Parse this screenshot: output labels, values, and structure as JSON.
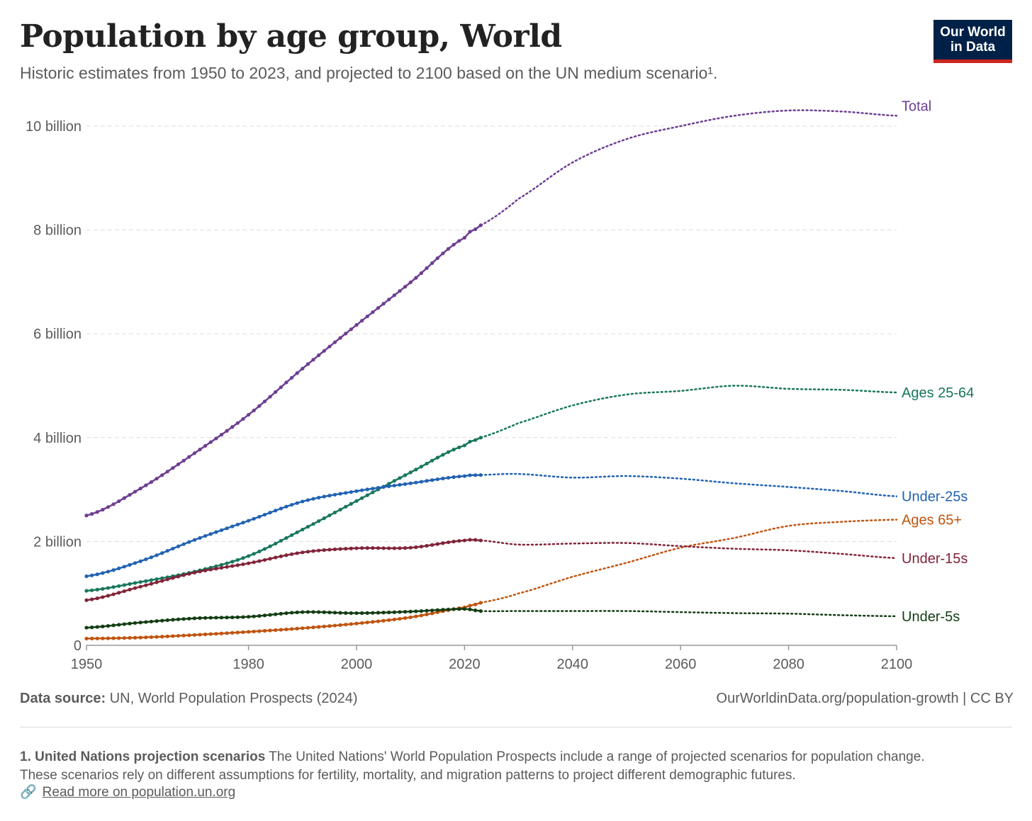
{
  "header": {
    "title": "Population by age group, World",
    "subtitle": "Historic estimates from 1950 to 2023, and projected to 2100 based on the UN medium scenario¹."
  },
  "logo": {
    "line1": "Our World",
    "line2": "in Data",
    "bg_color": "#002147",
    "accent_color": "#ce261e"
  },
  "footer": {
    "source_label": "Data source:",
    "source_text": "UN, World Population Prospects (2024)",
    "credit": "OurWorldinData.org/population-growth | CC BY",
    "footnote_title": "1. United Nations projection scenarios",
    "footnote_text": "The United Nations' World Population Prospects include a range of projected scenarios for population change. These scenarios rely on different assumptions for fertility, mortality, and migration patterns to project different demographic futures.",
    "link_icon": "link-icon",
    "link_text": "Read more on population.un.org"
  },
  "chart_data": {
    "type": "line",
    "title": "Population by age group, World",
    "xlim": [
      1950,
      2100
    ],
    "ylim": [
      0,
      10000000000
    ],
    "x_ticks": [
      1950,
      1980,
      2000,
      2020,
      2040,
      2060,
      2080,
      2100
    ],
    "x_tick_labels": [
      "1950",
      "1980",
      "2000",
      "2020",
      "2040",
      "2060",
      "2080",
      "2100"
    ],
    "y_ticks": [
      0,
      2000000000,
      4000000000,
      6000000000,
      8000000000,
      10000000000
    ],
    "y_tick_labels": [
      "0",
      "2 billion",
      "4 billion",
      "6 billion",
      "8 billion",
      "10 billion"
    ],
    "grid": "horizontal dashed",
    "legend": "labels at line ends (right)",
    "historic_end_year": 2023,
    "historic_style": "solid with dot markers",
    "projection_style": "dotted",
    "series": [
      {
        "name": "Total",
        "color": "#6d3e91",
        "x": [
          1950,
          1960,
          1970,
          1980,
          1990,
          2000,
          2010,
          2020,
          2023,
          2030,
          2040,
          2050,
          2060,
          2070,
          2080,
          2090,
          2100
        ],
        "values": [
          2500000000,
          3020000000,
          3700000000,
          4440000000,
          5330000000,
          6170000000,
          6990000000,
          7850000000,
          8090000000,
          8600000000,
          9300000000,
          9750000000,
          10000000000,
          10200000000,
          10300000000,
          10280000000,
          10200000000
        ]
      },
      {
        "name": "Ages 25-64",
        "color": "#18775b",
        "x": [
          1950,
          1960,
          1970,
          1980,
          1990,
          2000,
          2010,
          2020,
          2023,
          2030,
          2040,
          2050,
          2060,
          2070,
          2080,
          2090,
          2100
        ],
        "values": [
          1050000000,
          1220000000,
          1420000000,
          1720000000,
          2230000000,
          2780000000,
          3330000000,
          3850000000,
          4000000000,
          4280000000,
          4620000000,
          4830000000,
          4900000000,
          5000000000,
          4940000000,
          4920000000,
          4870000000
        ]
      },
      {
        "name": "Under-25s",
        "color": "#2162b3",
        "x": [
          1950,
          1960,
          1970,
          1980,
          1990,
          2000,
          2010,
          2020,
          2023,
          2030,
          2040,
          2050,
          2060,
          2070,
          2080,
          2090,
          2100
        ],
        "values": [
          1330000000,
          1620000000,
          2030000000,
          2400000000,
          2770000000,
          2970000000,
          3120000000,
          3260000000,
          3280000000,
          3300000000,
          3230000000,
          3260000000,
          3210000000,
          3120000000,
          3050000000,
          2970000000,
          2870000000
        ]
      },
      {
        "name": "Ages 65+",
        "color": "#c0540f",
        "x": [
          1950,
          1960,
          1970,
          1980,
          1990,
          2000,
          2010,
          2020,
          2023,
          2030,
          2040,
          2050,
          2060,
          2070,
          2080,
          2090,
          2100
        ],
        "values": [
          130000000,
          150000000,
          200000000,
          260000000,
          330000000,
          420000000,
          540000000,
          730000000,
          820000000,
          1000000000,
          1320000000,
          1590000000,
          1880000000,
          2070000000,
          2300000000,
          2380000000,
          2420000000
        ]
      },
      {
        "name": "Under-15s",
        "color": "#812338",
        "x": [
          1950,
          1960,
          1970,
          1980,
          1990,
          2000,
          2010,
          2020,
          2023,
          2030,
          2040,
          2050,
          2060,
          2070,
          2080,
          2090,
          2100
        ],
        "values": [
          870000000,
          1130000000,
          1400000000,
          1580000000,
          1790000000,
          1870000000,
          1880000000,
          2020000000,
          2020000000,
          1940000000,
          1960000000,
          1970000000,
          1910000000,
          1860000000,
          1830000000,
          1760000000,
          1680000000
        ]
      },
      {
        "name": "Under-5s",
        "color": "#123d13",
        "x": [
          1950,
          1960,
          1970,
          1980,
          1990,
          2000,
          2010,
          2020,
          2023,
          2030,
          2040,
          2050,
          2060,
          2070,
          2080,
          2090,
          2100
        ],
        "values": [
          340000000,
          440000000,
          520000000,
          550000000,
          640000000,
          620000000,
          650000000,
          700000000,
          660000000,
          660000000,
          660000000,
          660000000,
          640000000,
          620000000,
          610000000,
          580000000,
          560000000
        ]
      }
    ]
  }
}
